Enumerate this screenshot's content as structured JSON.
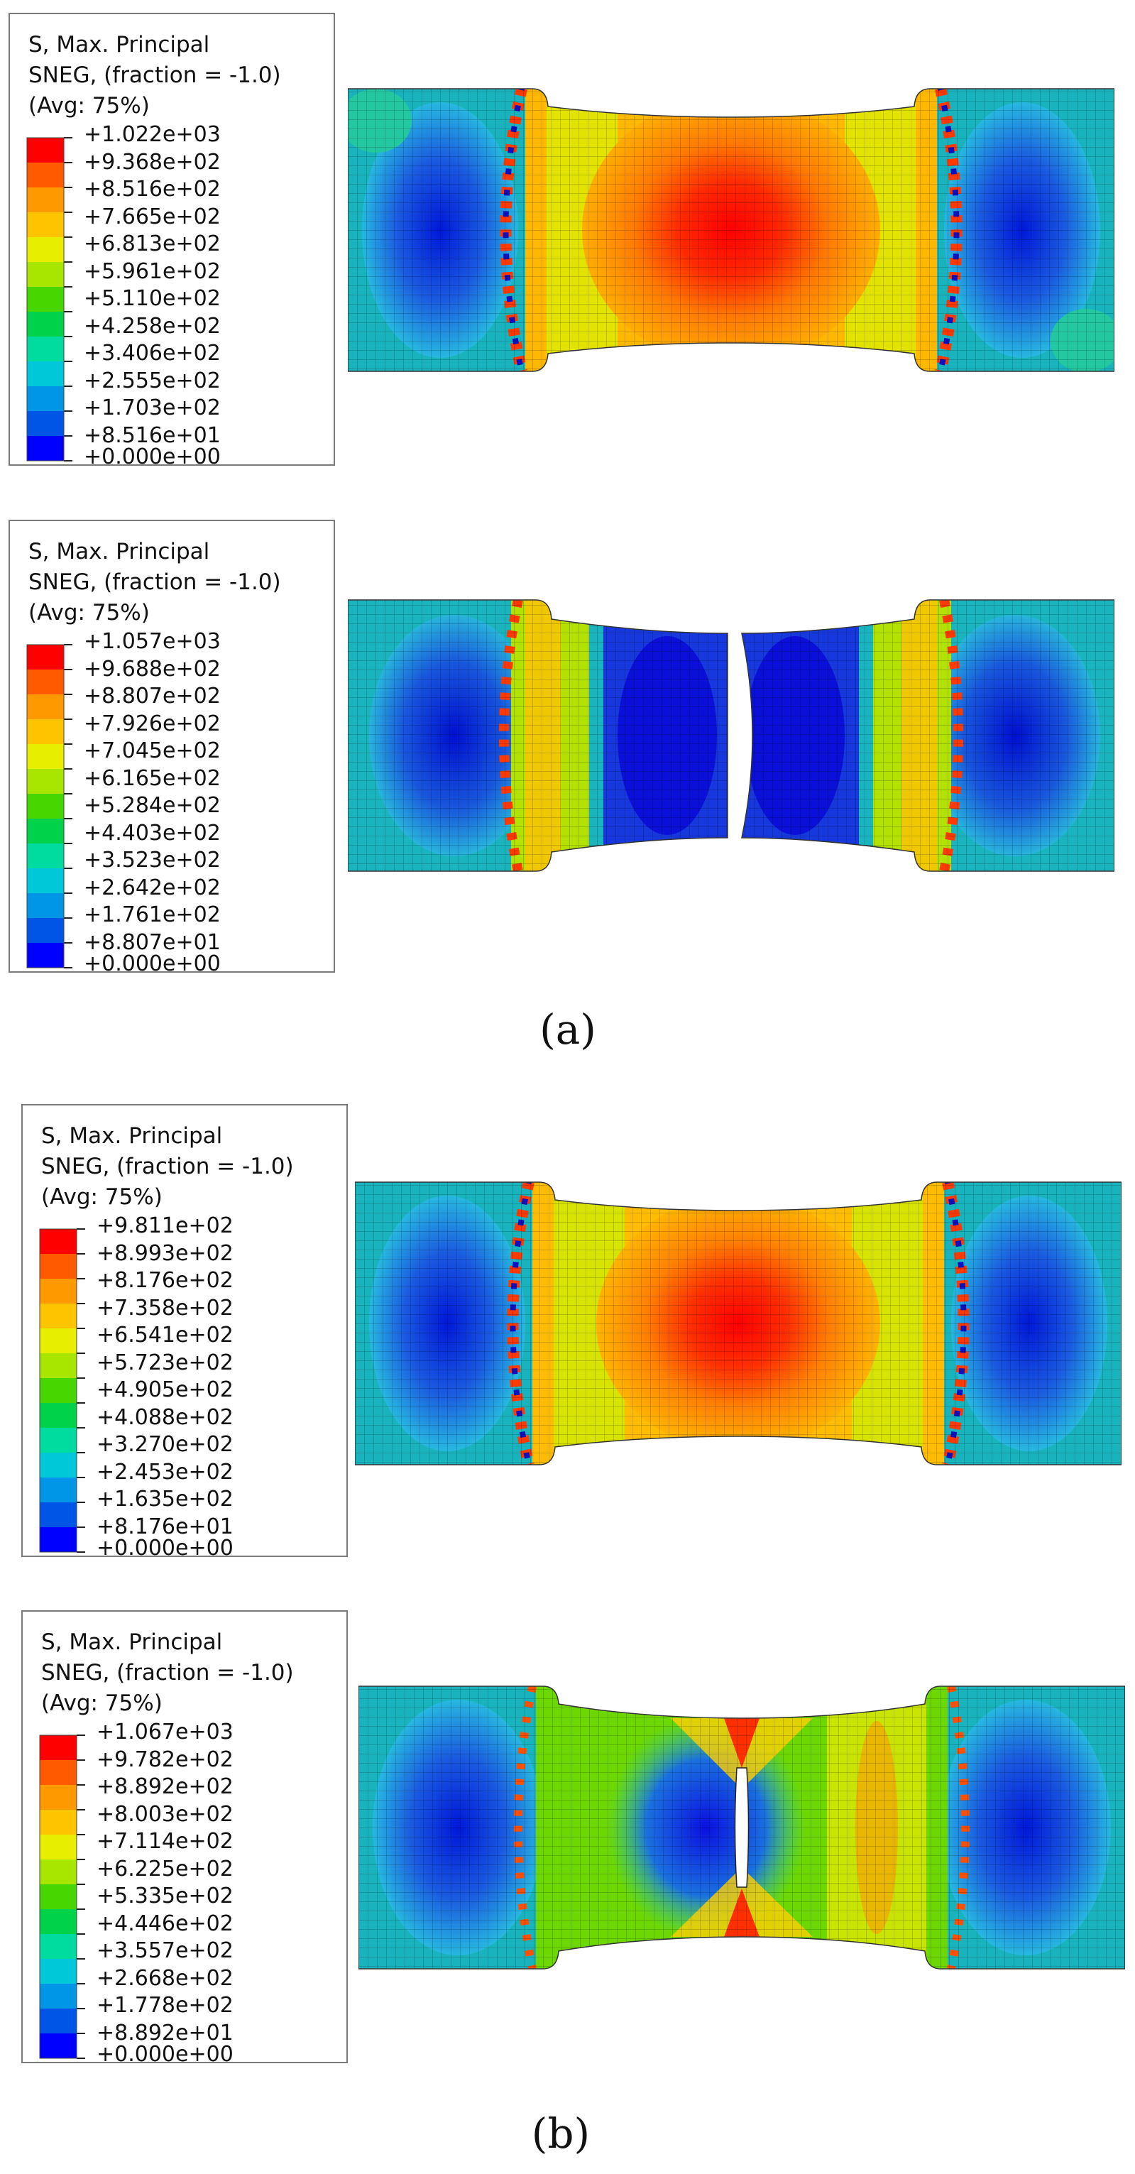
{
  "legends": [
    {
      "line1": "S, Max. Principal",
      "line2": "SNEG, (fraction = -1.0)",
      "line3": "(Avg: 75%)",
      "ticks": [
        "+1.022e+03",
        "+9.368e+02",
        "+8.516e+02",
        "+7.665e+02",
        "+6.813e+02",
        "+5.961e+02",
        "+5.110e+02",
        "+4.258e+02",
        "+3.406e+02",
        "+2.555e+02",
        "+1.703e+02",
        "+8.516e+01",
        "+0.000e+00"
      ]
    },
    {
      "line1": "S, Max. Principal",
      "line2": "SNEG, (fraction = -1.0)",
      "line3": "(Avg: 75%)",
      "ticks": [
        "+1.057e+03",
        "+9.688e+02",
        "+8.807e+02",
        "+7.926e+02",
        "+7.045e+02",
        "+6.165e+02",
        "+5.284e+02",
        "+4.403e+02",
        "+3.523e+02",
        "+2.642e+02",
        "+1.761e+02",
        "+8.807e+01",
        "+0.000e+00"
      ]
    },
    {
      "line1": "S, Max. Principal",
      "line2": "SNEG, (fraction = -1.0)",
      "line3": "(Avg: 75%)",
      "ticks": [
        "+9.811e+02",
        "+8.993e+02",
        "+8.176e+02",
        "+7.358e+02",
        "+6.541e+02",
        "+5.723e+02",
        "+4.905e+02",
        "+4.088e+02",
        "+3.270e+02",
        "+2.453e+02",
        "+1.635e+02",
        "+8.176e+01",
        "+0.000e+00"
      ]
    },
    {
      "line1": "S, Max. Principal",
      "line2": "SNEG, (fraction = -1.0)",
      "line3": "(Avg: 75%)",
      "ticks": [
        "+1.067e+03",
        "+9.782e+02",
        "+8.892e+02",
        "+8.003e+02",
        "+7.114e+02",
        "+6.225e+02",
        "+5.335e+02",
        "+4.446e+02",
        "+3.557e+02",
        "+2.668e+02",
        "+1.778e+02",
        "+8.892e+01",
        "+0.000e+00"
      ]
    }
  ],
  "colormap": [
    "#ff0000",
    "#ff5a00",
    "#ff9900",
    "#ffc400",
    "#e8ee00",
    "#a8e600",
    "#48d600",
    "#00d24a",
    "#00dca0",
    "#00c8d8",
    "#0096e8",
    "#0055e6",
    "#0000ff"
  ],
  "captions": {
    "a": "(a)",
    "b": "(b)"
  }
}
